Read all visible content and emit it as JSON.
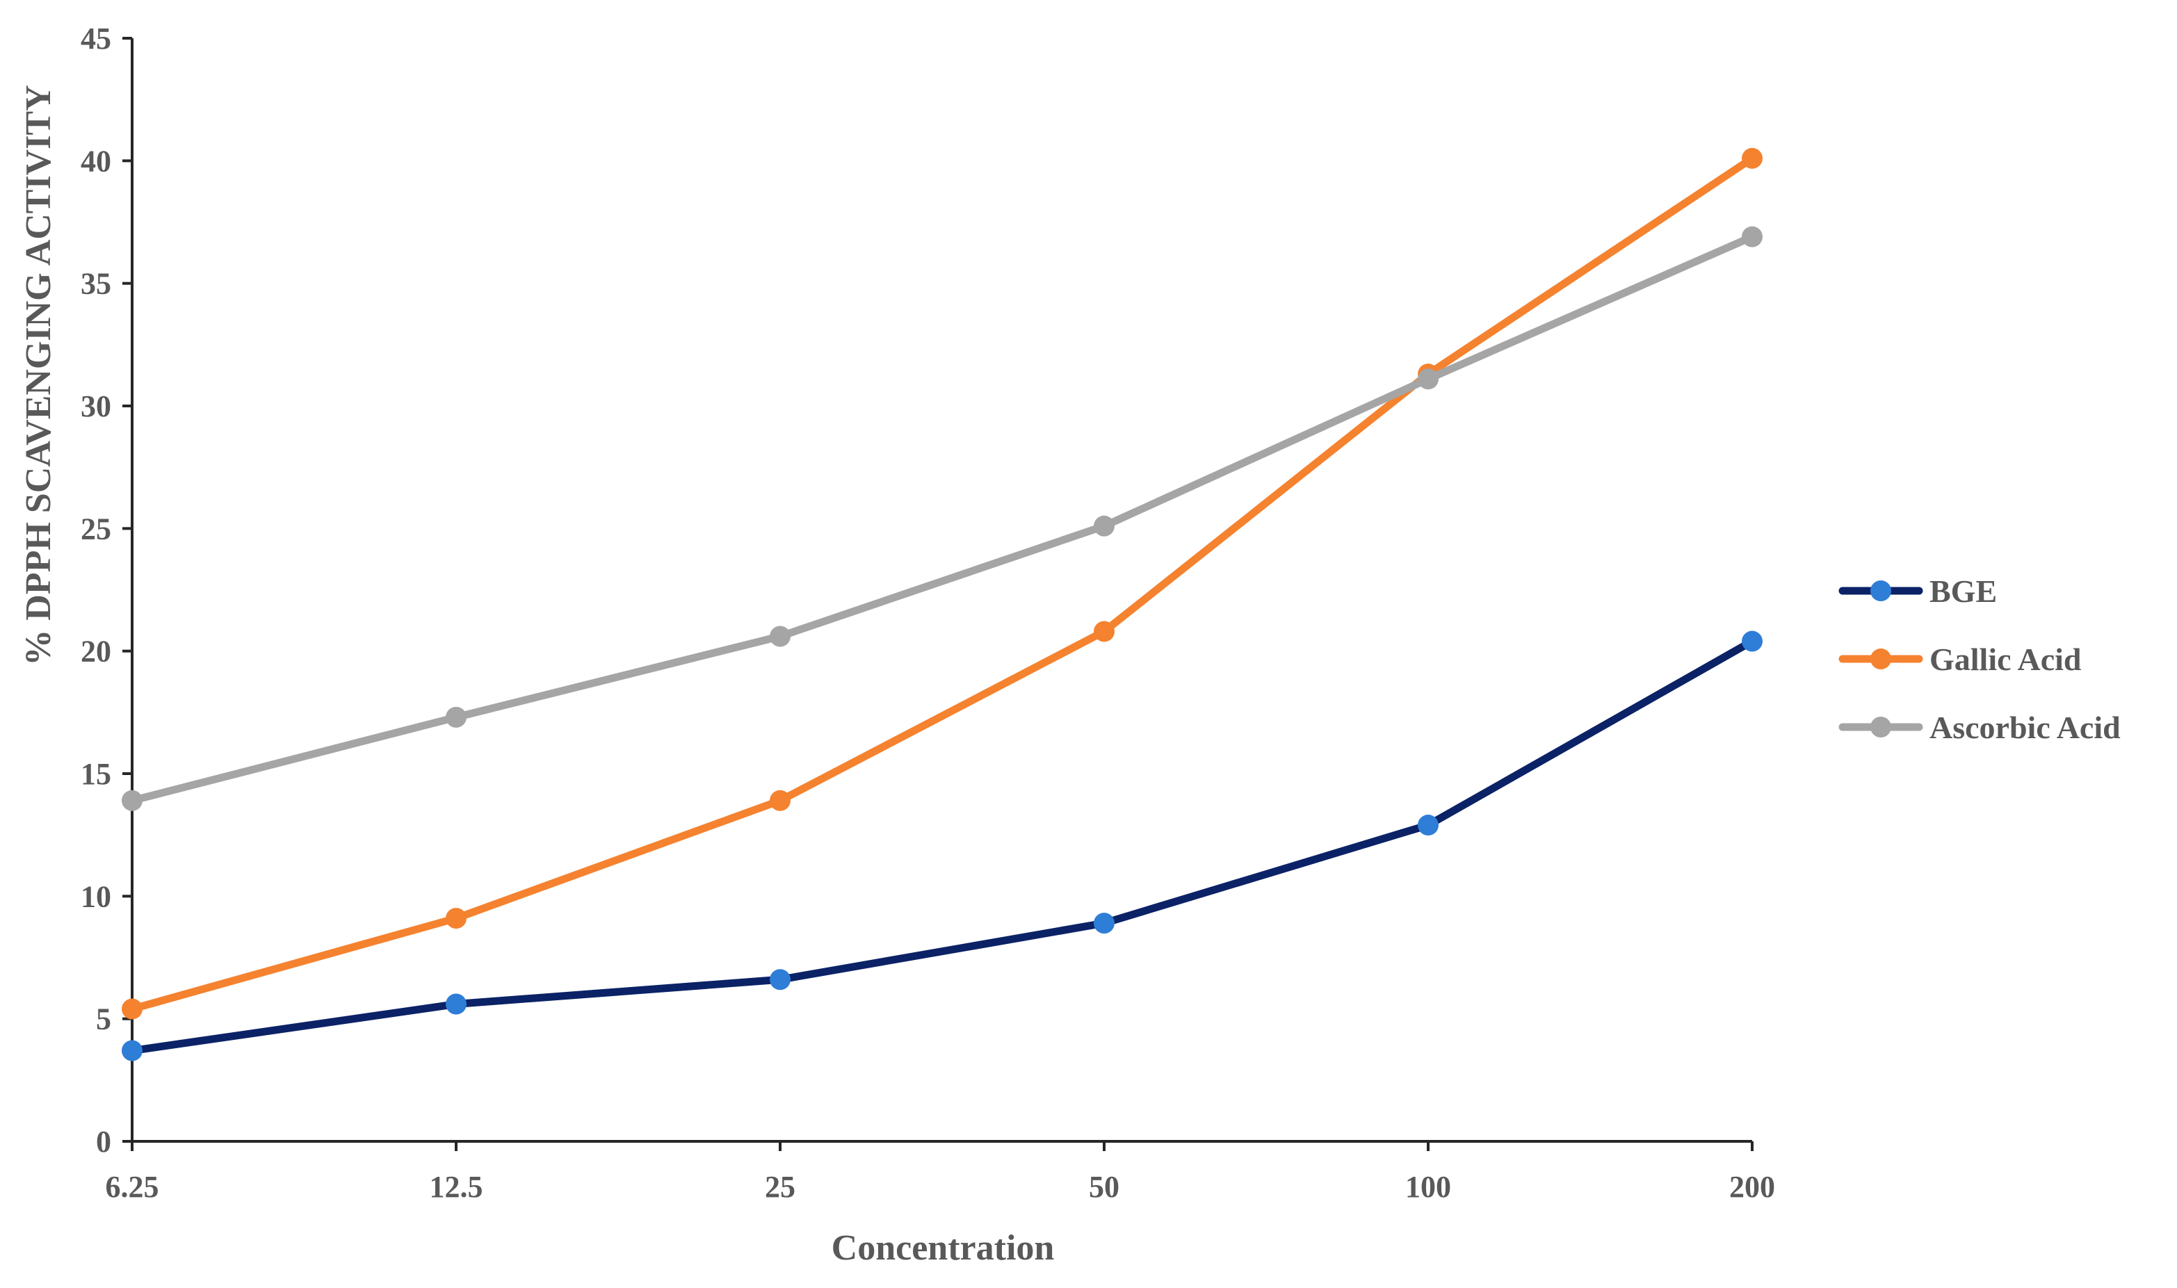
{
  "chart_data": {
    "type": "line",
    "title": "",
    "xlabel": "Concentration",
    "ylabel": "% DPPH SCAVENGING ACTIVITY",
    "categories": [
      "6.25",
      "12.5",
      "25",
      "50",
      "100",
      "200"
    ],
    "ylim": [
      0,
      45
    ],
    "yticks": [
      0,
      5,
      10,
      15,
      20,
      25,
      30,
      35,
      40,
      45
    ],
    "grid": false,
    "legend_position": "right",
    "series": [
      {
        "name": "BGE",
        "line_color": "#0B2266",
        "marker_color": "#2E7DD6",
        "values": [
          3.7,
          5.6,
          6.6,
          8.9,
          12.9,
          20.4
        ]
      },
      {
        "name": "Gallic Acid",
        "line_color": "#F5822F",
        "marker_color": "#F5822F",
        "values": [
          5.4,
          9.1,
          13.9,
          20.8,
          31.3,
          40.1
        ]
      },
      {
        "name": "Ascorbic Acid",
        "line_color": "#A5A5A5",
        "marker_color": "#A5A5A5",
        "values": [
          13.9,
          17.3,
          20.6,
          25.1,
          31.1,
          36.9
        ]
      }
    ]
  }
}
